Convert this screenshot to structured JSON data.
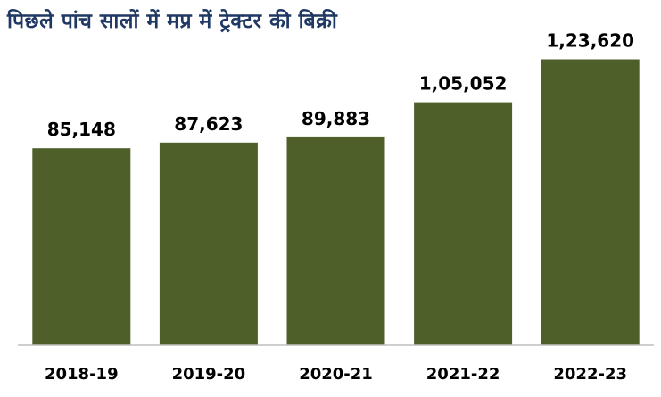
{
  "chart_data": {
    "type": "bar",
    "title": "पिछले पांच सालों में मप्र में ट्रेक्टर की बिक्री",
    "categories": [
      "2018-19",
      "2019-20",
      "2020-21",
      "2021-22",
      "2022-23"
    ],
    "values": [
      85148,
      87623,
      89883,
      105052,
      123620
    ],
    "value_labels": [
      "85,148",
      "87,623",
      "89,883",
      "1,05,052",
      "1,23,620"
    ],
    "xlabel": "",
    "ylabel": "",
    "ylim": [
      0,
      140000
    ],
    "grid": false,
    "legend": "none",
    "colors": {
      "bar": "#4e5f2a",
      "title": "#1f3864",
      "axis": "#bfbfbf"
    }
  }
}
